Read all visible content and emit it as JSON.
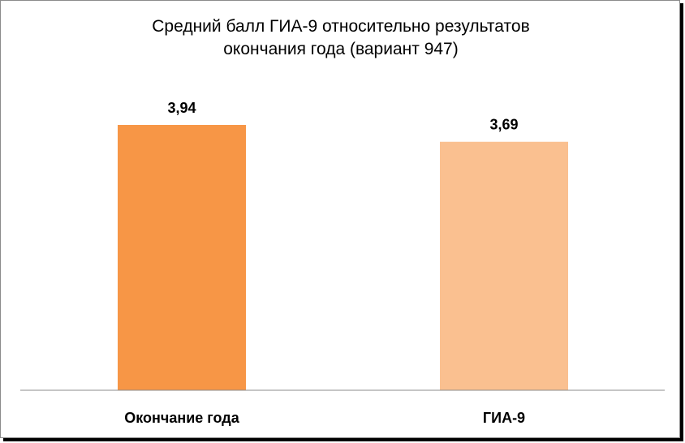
{
  "chart_data": {
    "type": "bar",
    "title_lines": [
      "Средний балл ГИА-9 относительно результатов",
      "окончания года (вариант 947)"
    ],
    "categories": [
      "Окончание года",
      "ГИА-9"
    ],
    "values": [
      3.94,
      3.69
    ],
    "value_labels": [
      "3,94",
      "3,69"
    ],
    "bar_colors": [
      "#F79646",
      "#FAC090"
    ],
    "legend": "none",
    "grid": false
  }
}
